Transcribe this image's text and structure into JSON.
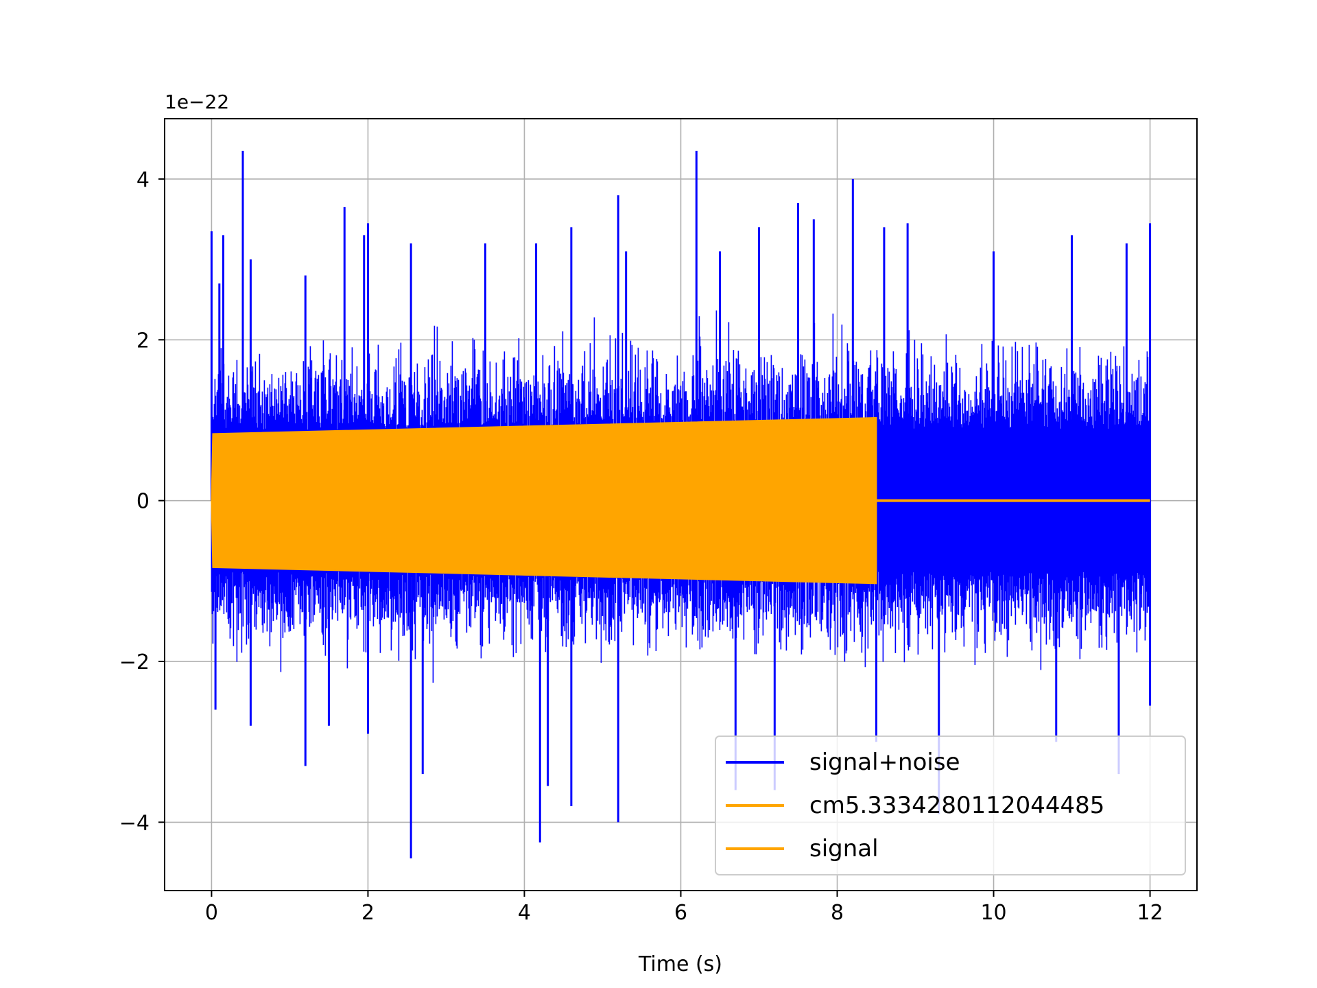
{
  "chart_data": {
    "type": "line",
    "title": "",
    "xlabel": "Time (s)",
    "ylabel": "",
    "y_offset_label": "1e−22",
    "y_scale_exponent": -22,
    "xlim": [
      -0.6,
      12.6
    ],
    "ylim": [
      -4.85,
      4.75
    ],
    "xticks": [
      0,
      2,
      4,
      6,
      8,
      10,
      12
    ],
    "xtick_labels": [
      "0",
      "2",
      "4",
      "6",
      "8",
      "10",
      "12"
    ],
    "yticks": [
      -4,
      -2,
      0,
      2,
      4
    ],
    "ytick_labels": [
      "−4",
      "−2",
      "0",
      "2",
      "4"
    ],
    "grid": true,
    "legend_position": "lower-right",
    "series": [
      {
        "name": "signal+noise",
        "color": "#0000ff",
        "kind": "noise",
        "t_range": [
          0,
          12
        ],
        "typical_envelope": [
          -1.6,
          1.6
        ],
        "max_value": 4.35,
        "min_value": -4.45,
        "peaks": [
          [
            0.0,
            3.35
          ],
          [
            0.1,
            2.7
          ],
          [
            0.15,
            3.3
          ],
          [
            0.4,
            4.35
          ],
          [
            0.5,
            3.0
          ],
          [
            1.2,
            2.8
          ],
          [
            1.7,
            3.65
          ],
          [
            1.95,
            3.3
          ],
          [
            2.0,
            3.45
          ],
          [
            2.55,
            3.2
          ],
          [
            3.5,
            3.2
          ],
          [
            4.15,
            3.2
          ],
          [
            4.6,
            3.4
          ],
          [
            5.2,
            3.8
          ],
          [
            5.3,
            3.1
          ],
          [
            6.2,
            4.35
          ],
          [
            6.5,
            3.1
          ],
          [
            7.0,
            3.4
          ],
          [
            7.5,
            3.7
          ],
          [
            7.7,
            3.5
          ],
          [
            8.2,
            4.0
          ],
          [
            8.6,
            3.4
          ],
          [
            8.9,
            3.45
          ],
          [
            10.0,
            3.1
          ],
          [
            11.0,
            3.3
          ],
          [
            11.7,
            3.2
          ],
          [
            12.0,
            3.45
          ]
        ],
        "troughs": [
          [
            0.05,
            -2.6
          ],
          [
            0.5,
            -2.8
          ],
          [
            1.2,
            -3.3
          ],
          [
            1.5,
            -2.8
          ],
          [
            2.0,
            -2.9
          ],
          [
            2.55,
            -4.45
          ],
          [
            2.7,
            -3.4
          ],
          [
            4.2,
            -4.25
          ],
          [
            4.3,
            -3.55
          ],
          [
            4.6,
            -3.8
          ],
          [
            5.2,
            -4.0
          ],
          [
            6.7,
            -3.6
          ],
          [
            7.2,
            -3.6
          ],
          [
            8.5,
            -3.0
          ],
          [
            9.3,
            -3.9
          ],
          [
            10.8,
            -3.0
          ],
          [
            11.6,
            -3.4
          ],
          [
            12.0,
            -2.55
          ]
        ]
      },
      {
        "name": "cm5.3334280112044485",
        "color": "#ffa500",
        "kind": "chirp",
        "t_range": [
          0,
          8.5
        ],
        "amplitude_start": 0.83,
        "amplitude_end": 1.03
      },
      {
        "name": "signal",
        "color": "#ffa500",
        "kind": "chirp",
        "t_range": [
          0,
          8.5
        ],
        "zero_after": 8.5,
        "zero_until": 12,
        "amplitude_start": 0.83,
        "amplitude_end": 1.03
      }
    ],
    "legend": [
      "signal+noise",
      "cm5.3334280112044485",
      "signal"
    ]
  }
}
